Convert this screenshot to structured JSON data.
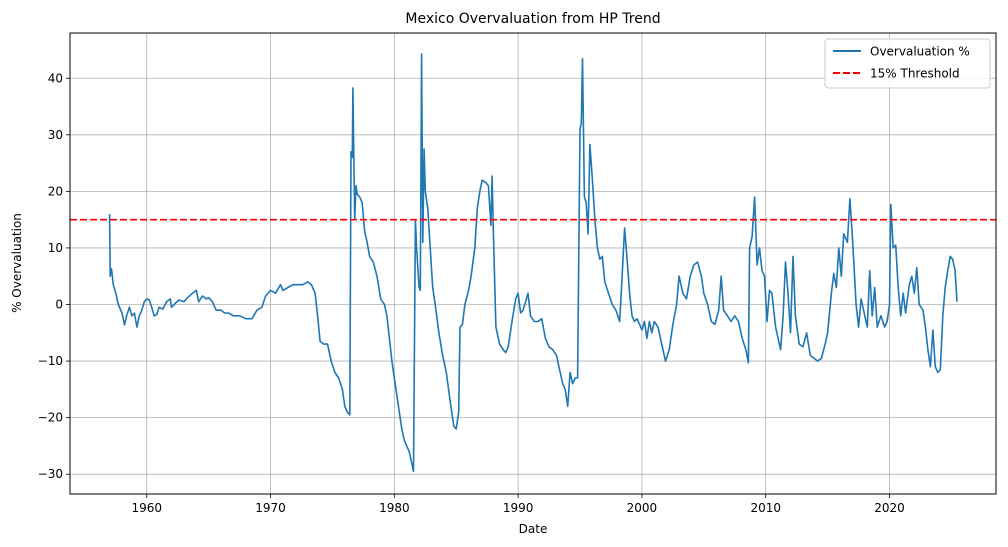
{
  "chart_data": {
    "type": "line",
    "title": "Mexico Overvaluation from HP Trend",
    "xlabel": "Date",
    "ylabel": "% Overvaluation",
    "xlim": [
      1953.8,
      2028.6
    ],
    "ylim": [
      -33.5,
      48.0
    ],
    "x_ticks": [
      1960,
      1970,
      1980,
      1990,
      2000,
      2010,
      2020
    ],
    "x_tick_labels": [
      "1960",
      "1970",
      "1980",
      "1990",
      "2000",
      "2010",
      "2020"
    ],
    "y_ticks": [
      -30,
      -20,
      -10,
      0,
      10,
      20,
      30,
      40
    ],
    "y_tick_labels": [
      "−30",
      "−20",
      "−10",
      "0",
      "10",
      "20",
      "30",
      "40"
    ],
    "grid": true,
    "legend_position": "top-right",
    "series": [
      {
        "name": "Overvaluation %",
        "color": "#1f77b4",
        "style": "solid",
        "points": [
          [
            1957.0,
            16.0
          ],
          [
            1957.05,
            5.0
          ],
          [
            1957.15,
            6.3
          ],
          [
            1957.3,
            3.5
          ],
          [
            1957.5,
            2.0
          ],
          [
            1957.7,
            0.0
          ],
          [
            1958.0,
            -1.5
          ],
          [
            1958.2,
            -3.6
          ],
          [
            1958.4,
            -1.8
          ],
          [
            1958.6,
            -0.5
          ],
          [
            1958.8,
            -2.0
          ],
          [
            1959.0,
            -1.5
          ],
          [
            1959.2,
            -4.0
          ],
          [
            1959.4,
            -2.0
          ],
          [
            1959.6,
            -1.0
          ],
          [
            1959.8,
            0.5
          ],
          [
            1960.0,
            1.0
          ],
          [
            1960.2,
            0.8
          ],
          [
            1960.4,
            -0.5
          ],
          [
            1960.6,
            -2.0
          ],
          [
            1960.8,
            -1.8
          ],
          [
            1961.0,
            -0.5
          ],
          [
            1961.3,
            -0.8
          ],
          [
            1961.6,
            0.5
          ],
          [
            1961.9,
            1.0
          ],
          [
            1962.0,
            -0.5
          ],
          [
            1962.3,
            0.2
          ],
          [
            1962.6,
            0.8
          ],
          [
            1963.0,
            0.5
          ],
          [
            1963.3,
            1.2
          ],
          [
            1963.6,
            1.8
          ],
          [
            1964.0,
            2.5
          ],
          [
            1964.2,
            0.5
          ],
          [
            1964.5,
            1.5
          ],
          [
            1964.8,
            1.0
          ],
          [
            1965.0,
            1.2
          ],
          [
            1965.3,
            0.5
          ],
          [
            1965.6,
            -1.0
          ],
          [
            1966.0,
            -1.0
          ],
          [
            1966.3,
            -1.5
          ],
          [
            1966.6,
            -1.5
          ],
          [
            1967.0,
            -2.0
          ],
          [
            1967.5,
            -2.0
          ],
          [
            1968.0,
            -2.5
          ],
          [
            1968.5,
            -2.5
          ],
          [
            1968.9,
            -1.0
          ],
          [
            1969.3,
            -0.5
          ],
          [
            1969.6,
            1.5
          ],
          [
            1970.0,
            2.5
          ],
          [
            1970.4,
            2.0
          ],
          [
            1970.8,
            3.5
          ],
          [
            1971.0,
            2.5
          ],
          [
            1971.4,
            3.0
          ],
          [
            1971.8,
            3.5
          ],
          [
            1972.2,
            3.5
          ],
          [
            1972.6,
            3.5
          ],
          [
            1973.0,
            4.0
          ],
          [
            1973.3,
            3.5
          ],
          [
            1973.6,
            2.0
          ],
          [
            1973.8,
            -2.0
          ],
          [
            1974.0,
            -6.5
          ],
          [
            1974.3,
            -7.0
          ],
          [
            1974.6,
            -7.0
          ],
          [
            1974.9,
            -10.0
          ],
          [
            1975.2,
            -12.0
          ],
          [
            1975.5,
            -13.0
          ],
          [
            1975.8,
            -15.0
          ],
          [
            1976.0,
            -18.0
          ],
          [
            1976.2,
            -19.0
          ],
          [
            1976.4,
            -19.5
          ],
          [
            1976.5,
            27.0
          ],
          [
            1976.6,
            26.0
          ],
          [
            1976.65,
            38.3
          ],
          [
            1976.8,
            15.0
          ],
          [
            1976.9,
            21.0
          ],
          [
            1977.0,
            19.5
          ],
          [
            1977.2,
            19.0
          ],
          [
            1977.4,
            18.0
          ],
          [
            1977.6,
            13.0
          ],
          [
            1977.8,
            11.0
          ],
          [
            1978.0,
            8.5
          ],
          [
            1978.3,
            7.5
          ],
          [
            1978.6,
            5.0
          ],
          [
            1978.9,
            1.0
          ],
          [
            1979.2,
            0.0
          ],
          [
            1979.4,
            -2.0
          ],
          [
            1979.6,
            -6.0
          ],
          [
            1979.8,
            -10.0
          ],
          [
            1980.0,
            -13.0
          ],
          [
            1980.2,
            -16.0
          ],
          [
            1980.4,
            -19.0
          ],
          [
            1980.6,
            -22.0
          ],
          [
            1980.8,
            -24.0
          ],
          [
            1981.0,
            -25.0
          ],
          [
            1981.2,
            -26.0
          ],
          [
            1981.4,
            -28.0
          ],
          [
            1981.55,
            -29.5
          ],
          [
            1981.7,
            15.0
          ],
          [
            1981.8,
            10.0
          ],
          [
            1982.0,
            3.0
          ],
          [
            1982.1,
            2.5
          ],
          [
            1982.2,
            44.3
          ],
          [
            1982.3,
            11.0
          ],
          [
            1982.4,
            27.5
          ],
          [
            1982.5,
            20.0
          ],
          [
            1982.7,
            17.0
          ],
          [
            1982.9,
            10.0
          ],
          [
            1983.1,
            3.0
          ],
          [
            1983.3,
            0.0
          ],
          [
            1983.6,
            -5.0
          ],
          [
            1983.9,
            -9.0
          ],
          [
            1984.2,
            -12.0
          ],
          [
            1984.5,
            -17.0
          ],
          [
            1984.8,
            -21.5
          ],
          [
            1985.0,
            -22.0
          ],
          [
            1985.2,
            -19.0
          ],
          [
            1985.3,
            -4.0
          ],
          [
            1985.5,
            -3.5
          ],
          [
            1985.7,
            0.0
          ],
          [
            1986.0,
            2.5
          ],
          [
            1986.2,
            5.0
          ],
          [
            1986.5,
            10.0
          ],
          [
            1986.7,
            17.0
          ],
          [
            1986.9,
            20.0
          ],
          [
            1987.1,
            22.0
          ],
          [
            1987.4,
            21.5
          ],
          [
            1987.6,
            21.0
          ],
          [
            1987.8,
            14.0
          ],
          [
            1987.9,
            22.7
          ],
          [
            1988.0,
            12.5
          ],
          [
            1988.2,
            -4.0
          ],
          [
            1988.5,
            -7.0
          ],
          [
            1988.8,
            -8.0
          ],
          [
            1989.0,
            -8.5
          ],
          [
            1989.2,
            -7.5
          ],
          [
            1989.5,
            -3.0
          ],
          [
            1989.8,
            1.0
          ],
          [
            1990.0,
            2.0
          ],
          [
            1990.2,
            -1.5
          ],
          [
            1990.4,
            -1.0
          ],
          [
            1990.6,
            0.5
          ],
          [
            1990.8,
            2.0
          ],
          [
            1991.0,
            -2.0
          ],
          [
            1991.3,
            -3.0
          ],
          [
            1991.6,
            -3.0
          ],
          [
            1991.9,
            -2.5
          ],
          [
            1992.2,
            -6.0
          ],
          [
            1992.5,
            -7.5
          ],
          [
            1992.8,
            -8.0
          ],
          [
            1993.1,
            -9.0
          ],
          [
            1993.4,
            -12.0
          ],
          [
            1993.6,
            -14.0
          ],
          [
            1993.8,
            -15.0
          ],
          [
            1994.0,
            -18.0
          ],
          [
            1994.2,
            -12.0
          ],
          [
            1994.4,
            -14.0
          ],
          [
            1994.6,
            -13.0
          ],
          [
            1994.8,
            -13.0
          ],
          [
            1995.0,
            31.0
          ],
          [
            1995.1,
            32.0
          ],
          [
            1995.2,
            43.5
          ],
          [
            1995.35,
            19.0
          ],
          [
            1995.5,
            18.0
          ],
          [
            1995.65,
            12.5
          ],
          [
            1995.8,
            28.3
          ],
          [
            1996.0,
            22.0
          ],
          [
            1996.2,
            15.0
          ],
          [
            1996.4,
            10.0
          ],
          [
            1996.6,
            8.0
          ],
          [
            1996.8,
            8.5
          ],
          [
            1997.0,
            4.0
          ],
          [
            1997.3,
            2.0
          ],
          [
            1997.6,
            0.0
          ],
          [
            1997.9,
            -1.0
          ],
          [
            1998.2,
            -3.0
          ],
          [
            1998.4,
            5.0
          ],
          [
            1998.6,
            13.5
          ],
          [
            1998.8,
            8.0
          ],
          [
            1999.0,
            2.0
          ],
          [
            1999.2,
            -2.0
          ],
          [
            1999.4,
            -3.0
          ],
          [
            1999.6,
            -2.5
          ],
          [
            1999.8,
            -3.5
          ],
          [
            2000.0,
            -4.5
          ],
          [
            2000.2,
            -3.0
          ],
          [
            2000.4,
            -6.0
          ],
          [
            2000.6,
            -3.0
          ],
          [
            2000.8,
            -5.0
          ],
          [
            2001.0,
            -3.0
          ],
          [
            2001.3,
            -4.0
          ],
          [
            2001.6,
            -7.0
          ],
          [
            2001.9,
            -10.0
          ],
          [
            2002.2,
            -8.0
          ],
          [
            2002.5,
            -3.5
          ],
          [
            2002.8,
            0.0
          ],
          [
            2003.0,
            5.0
          ],
          [
            2003.3,
            2.0
          ],
          [
            2003.6,
            1.0
          ],
          [
            2003.9,
            5.0
          ],
          [
            2004.2,
            7.0
          ],
          [
            2004.5,
            7.5
          ],
          [
            2004.8,
            5.0
          ],
          [
            2005.0,
            2.0
          ],
          [
            2005.3,
            0.0
          ],
          [
            2005.6,
            -3.0
          ],
          [
            2005.9,
            -3.5
          ],
          [
            2006.2,
            -1.0
          ],
          [
            2006.4,
            5.0
          ],
          [
            2006.6,
            -1.0
          ],
          [
            2006.9,
            -2.0
          ],
          [
            2007.2,
            -3.0
          ],
          [
            2007.5,
            -2.0
          ],
          [
            2007.8,
            -3.0
          ],
          [
            2008.1,
            -6.0
          ],
          [
            2008.4,
            -8.0
          ],
          [
            2008.6,
            -10.3
          ],
          [
            2008.7,
            10.0
          ],
          [
            2008.9,
            12.0
          ],
          [
            2009.1,
            19.0
          ],
          [
            2009.3,
            7.0
          ],
          [
            2009.5,
            10.0
          ],
          [
            2009.7,
            6.0
          ],
          [
            2009.9,
            5.0
          ],
          [
            2010.1,
            -3.0
          ],
          [
            2010.3,
            2.5
          ],
          [
            2010.5,
            2.0
          ],
          [
            2010.8,
            -4.0
          ],
          [
            2011.0,
            -6.0
          ],
          [
            2011.2,
            -8.0
          ],
          [
            2011.4,
            -2.0
          ],
          [
            2011.6,
            7.5
          ],
          [
            2011.8,
            2.0
          ],
          [
            2012.0,
            -5.0
          ],
          [
            2012.2,
            8.5
          ],
          [
            2012.4,
            -2.0
          ],
          [
            2012.7,
            -7.0
          ],
          [
            2013.0,
            -7.5
          ],
          [
            2013.3,
            -5.0
          ],
          [
            2013.6,
            -9.0
          ],
          [
            2013.9,
            -9.5
          ],
          [
            2014.2,
            -10.0
          ],
          [
            2014.5,
            -9.5
          ],
          [
            2014.8,
            -7.0
          ],
          [
            2015.0,
            -5.0
          ],
          [
            2015.3,
            2.0
          ],
          [
            2015.5,
            5.5
          ],
          [
            2015.7,
            3.0
          ],
          [
            2015.9,
            10.0
          ],
          [
            2016.1,
            5.0
          ],
          [
            2016.3,
            12.5
          ],
          [
            2016.6,
            11.0
          ],
          [
            2016.8,
            18.7
          ],
          [
            2017.0,
            12.0
          ],
          [
            2017.3,
            0.0
          ],
          [
            2017.5,
            -4.0
          ],
          [
            2017.7,
            1.0
          ],
          [
            2018.0,
            -2.0
          ],
          [
            2018.2,
            -4.0
          ],
          [
            2018.4,
            6.0
          ],
          [
            2018.6,
            -2.0
          ],
          [
            2018.8,
            3.0
          ],
          [
            2019.0,
            -4.0
          ],
          [
            2019.3,
            -2.0
          ],
          [
            2019.6,
            -4.0
          ],
          [
            2019.8,
            -3.0
          ],
          [
            2020.0,
            0.0
          ],
          [
            2020.1,
            17.7
          ],
          [
            2020.3,
            10.0
          ],
          [
            2020.5,
            10.5
          ],
          [
            2020.7,
            3.0
          ],
          [
            2020.9,
            -2.0
          ],
          [
            2021.1,
            2.0
          ],
          [
            2021.3,
            -1.5
          ],
          [
            2021.6,
            3.5
          ],
          [
            2021.8,
            5.0
          ],
          [
            2022.0,
            2.0
          ],
          [
            2022.2,
            6.5
          ],
          [
            2022.4,
            0.0
          ],
          [
            2022.7,
            -1.0
          ],
          [
            2022.9,
            -4.0
          ],
          [
            2023.1,
            -8.0
          ],
          [
            2023.3,
            -11.0
          ],
          [
            2023.5,
            -4.5
          ],
          [
            2023.7,
            -11.0
          ],
          [
            2023.9,
            -12.0
          ],
          [
            2024.1,
            -11.5
          ],
          [
            2024.3,
            -2.0
          ],
          [
            2024.5,
            3.0
          ],
          [
            2024.7,
            6.0
          ],
          [
            2024.9,
            8.5
          ],
          [
            2025.1,
            8.0
          ],
          [
            2025.3,
            6.0
          ],
          [
            2025.45,
            0.5
          ]
        ]
      },
      {
        "name": "15% Threshold",
        "color": "#ff0000",
        "style": "dashed",
        "value": 15
      }
    ]
  }
}
